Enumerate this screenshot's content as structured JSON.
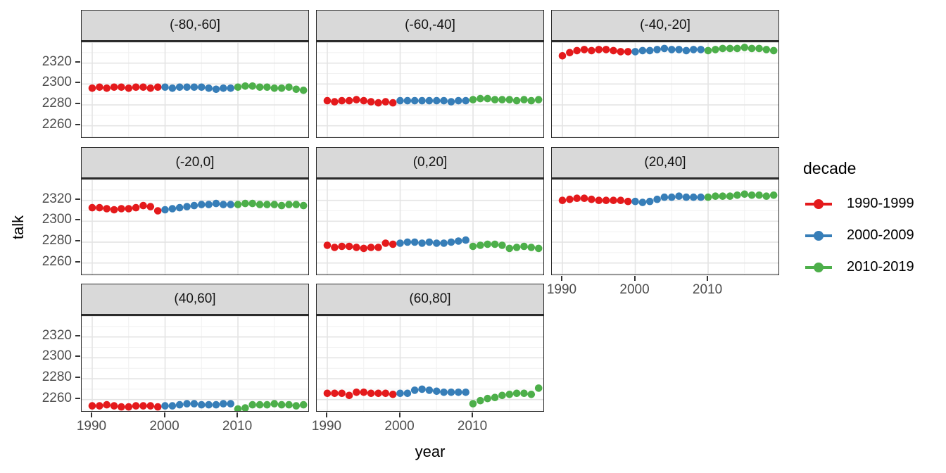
{
  "chart_data": {
    "type": "scatter",
    "title": "",
    "xlabel": "year",
    "ylabel": "talk",
    "legend_title": "decade",
    "legend_position": "right",
    "grid": true,
    "facet_layout": {
      "rows": 3,
      "cols": 3,
      "shown_panels": 8
    },
    "x_domain": [
      1988.55,
      2019.85
    ],
    "y_domain": [
      2247,
      2340
    ],
    "x_ticks": [
      1990,
      2000,
      2010
    ],
    "y_ticks": [
      2320,
      2300,
      2280,
      2260
    ],
    "x_minor_grid": [
      1995,
      2005,
      2015
    ],
    "y_major_grid": [
      2260,
      2280,
      2300,
      2320,
      2340
    ],
    "y_minor_grid": [
      2250,
      2270,
      2290,
      2310,
      2330
    ],
    "year_start": 1990,
    "decades": [
      {
        "name": "1990-1999",
        "color": "#E41A1C",
        "start": 1990,
        "end": 1999
      },
      {
        "name": "2000-2009",
        "color": "#377EB8",
        "start": 2000,
        "end": 2009
      },
      {
        "name": "2010-2019",
        "color": "#4DAF4A",
        "start": 2010,
        "end": 2019
      }
    ],
    "facets": [
      {
        "label": "(-80,-60]",
        "values": [
          2296,
          2297,
          2296,
          2297,
          2297,
          2296,
          2297,
          2297,
          2296,
          2297,
          2297,
          2296,
          2297,
          2297,
          2297,
          2297,
          2296,
          2295,
          2296,
          2296,
          2297,
          2298,
          2298,
          2297,
          2297,
          2296,
          2296,
          2297,
          2295,
          2294
        ]
      },
      {
        "label": "(-60,-40]",
        "values": [
          2284,
          2283,
          2284,
          2284,
          2285,
          2284,
          2283,
          2282,
          2283,
          2282,
          2284,
          2284,
          2284,
          2284,
          2284,
          2284,
          2284,
          2283,
          2284,
          2284,
          2285,
          2286,
          2286,
          2285,
          2285,
          2285,
          2284,
          2285,
          2284,
          2285
        ]
      },
      {
        "label": "(-40,-20]",
        "values": [
          2327,
          2330,
          2332,
          2333,
          2332,
          2333,
          2333,
          2332,
          2331,
          2331,
          2331,
          2332,
          2332,
          2333,
          2334,
          2333,
          2333,
          2332,
          2333,
          2333,
          2332,
          2333,
          2334,
          2334,
          2334,
          2335,
          2334,
          2334,
          2333,
          2332
        ]
      },
      {
        "label": "(-20,0]",
        "values": [
          2313,
          2313,
          2312,
          2311,
          2312,
          2312,
          2313,
          2315,
          2314,
          2310,
          2311,
          2312,
          2313,
          2314,
          2315,
          2316,
          2316,
          2317,
          2316,
          2316,
          2316,
          2317,
          2317,
          2316,
          2316,
          2316,
          2315,
          2316,
          2316,
          2315
        ]
      },
      {
        "label": "(0,20]",
        "values": [
          2277,
          2275,
          2276,
          2276,
          2275,
          2274,
          2275,
          2275,
          2279,
          2278,
          2279,
          2280,
          2280,
          2279,
          2280,
          2279,
          2279,
          2280,
          2281,
          2282,
          2276,
          2277,
          2278,
          2278,
          2277,
          2274,
          2275,
          2276,
          2275,
          2274
        ]
      },
      {
        "label": "(20,40]",
        "values": [
          2320,
          2321,
          2322,
          2322,
          2321,
          2320,
          2320,
          2320,
          2320,
          2319,
          2319,
          2318,
          2319,
          2321,
          2323,
          2323,
          2324,
          2323,
          2323,
          2323,
          2323,
          2324,
          2324,
          2324,
          2325,
          2326,
          2325,
          2325,
          2324,
          2325
        ]
      },
      {
        "label": "(40,60]",
        "values": [
          2254,
          2254,
          2255,
          2254,
          2253,
          2253,
          2254,
          2254,
          2254,
          2253,
          2254,
          2254,
          2255,
          2256,
          2256,
          2255,
          2255,
          2255,
          2256,
          2256,
          2251,
          2252,
          2255,
          2255,
          2255,
          2256,
          2255,
          2255,
          2254,
          2255
        ]
      },
      {
        "label": "(60,80]",
        "values": [
          2266,
          2266,
          2266,
          2264,
          2267,
          2267,
          2266,
          2266,
          2266,
          2265,
          2266,
          2266,
          2269,
          2270,
          2269,
          2268,
          2267,
          2267,
          2267,
          2267,
          2256,
          2259,
          2261,
          2262,
          2264,
          2265,
          2266,
          2266,
          2265,
          2271
        ]
      }
    ],
    "style": {
      "strip_background": "#d9d9d9",
      "panel_border": "#2b2b2b",
      "major_grid_color": "#e4e4e4",
      "minor_grid_color": "#f1f1f1",
      "axis_text_color": "#4d4d4d",
      "point_radius": 5.3
    }
  }
}
